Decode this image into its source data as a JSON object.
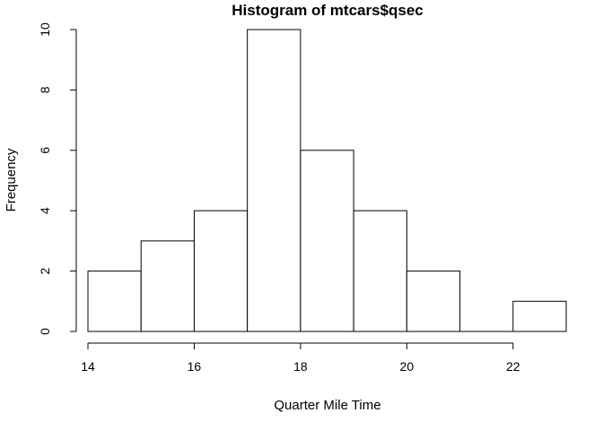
{
  "chart_data": {
    "type": "bar",
    "title": "Histogram of mtcars$qsec",
    "xlabel": "Quarter Mile Time",
    "ylabel": "Frequency",
    "bins": [
      {
        "from": 14,
        "to": 15,
        "count": 2
      },
      {
        "from": 15,
        "to": 16,
        "count": 3
      },
      {
        "from": 16,
        "to": 17,
        "count": 4
      },
      {
        "from": 17,
        "to": 18,
        "count": 10
      },
      {
        "from": 18,
        "to": 19,
        "count": 6
      },
      {
        "from": 19,
        "to": 20,
        "count": 4
      },
      {
        "from": 20,
        "to": 21,
        "count": 2
      },
      {
        "from": 21,
        "to": 22,
        "count": 0
      },
      {
        "from": 22,
        "to": 23,
        "count": 1
      }
    ],
    "xlim": [
      14,
      23
    ],
    "ylim": [
      0,
      10
    ],
    "x_ticks": [
      "14",
      "16",
      "18",
      "20",
      "22"
    ],
    "y_ticks": [
      "0",
      "2",
      "4",
      "6",
      "8",
      "10"
    ],
    "grid": false,
    "legend": "none",
    "bar_fill": "#ffffff",
    "bar_stroke": "#000000"
  }
}
